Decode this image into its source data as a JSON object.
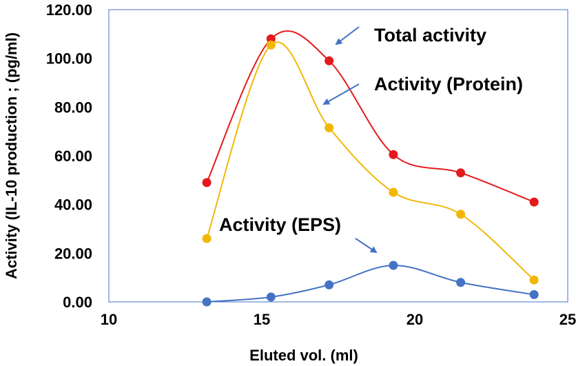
{
  "chart_data": {
    "type": "line",
    "title": "",
    "xlabel": "Eluted vol. (ml)",
    "ylabel": "Activity (IL-10 production ; (pg/ml)",
    "xlim": [
      10,
      25
    ],
    "ylim": [
      0,
      120
    ],
    "x_ticks": [
      10,
      15,
      20,
      25
    ],
    "y_ticks": [
      "0.00",
      "20.00",
      "40.00",
      "60.00",
      "80.00",
      "100.00",
      "120.00"
    ],
    "grid": false,
    "smooth": true,
    "x": [
      13.2,
      15.3,
      17.2,
      19.3,
      21.5,
      23.9
    ],
    "series": [
      {
        "name": "Total activity",
        "color": "#e41a1c",
        "values": [
          49.0,
          108.0,
          99.0,
          60.5,
          53.0,
          41.0
        ]
      },
      {
        "name": "Activity (Protein)",
        "color": "#f2b705",
        "values": [
          26.0,
          105.5,
          71.5,
          45.0,
          36.0,
          9.0
        ]
      },
      {
        "name": "Activity (EPS)",
        "color": "#4472c4",
        "values": [
          0.0,
          2.0,
          7.0,
          15.0,
          8.0,
          3.0
        ]
      }
    ],
    "annotations": [
      {
        "text": "Total activity",
        "series": 0,
        "arrow_color": "#4472c4"
      },
      {
        "text": "Activity (Protein)",
        "series": 1,
        "arrow_color": "#4472c4"
      },
      {
        "text": "Activity (EPS)",
        "series": 2,
        "arrow_color": "#4472c4"
      }
    ]
  }
}
